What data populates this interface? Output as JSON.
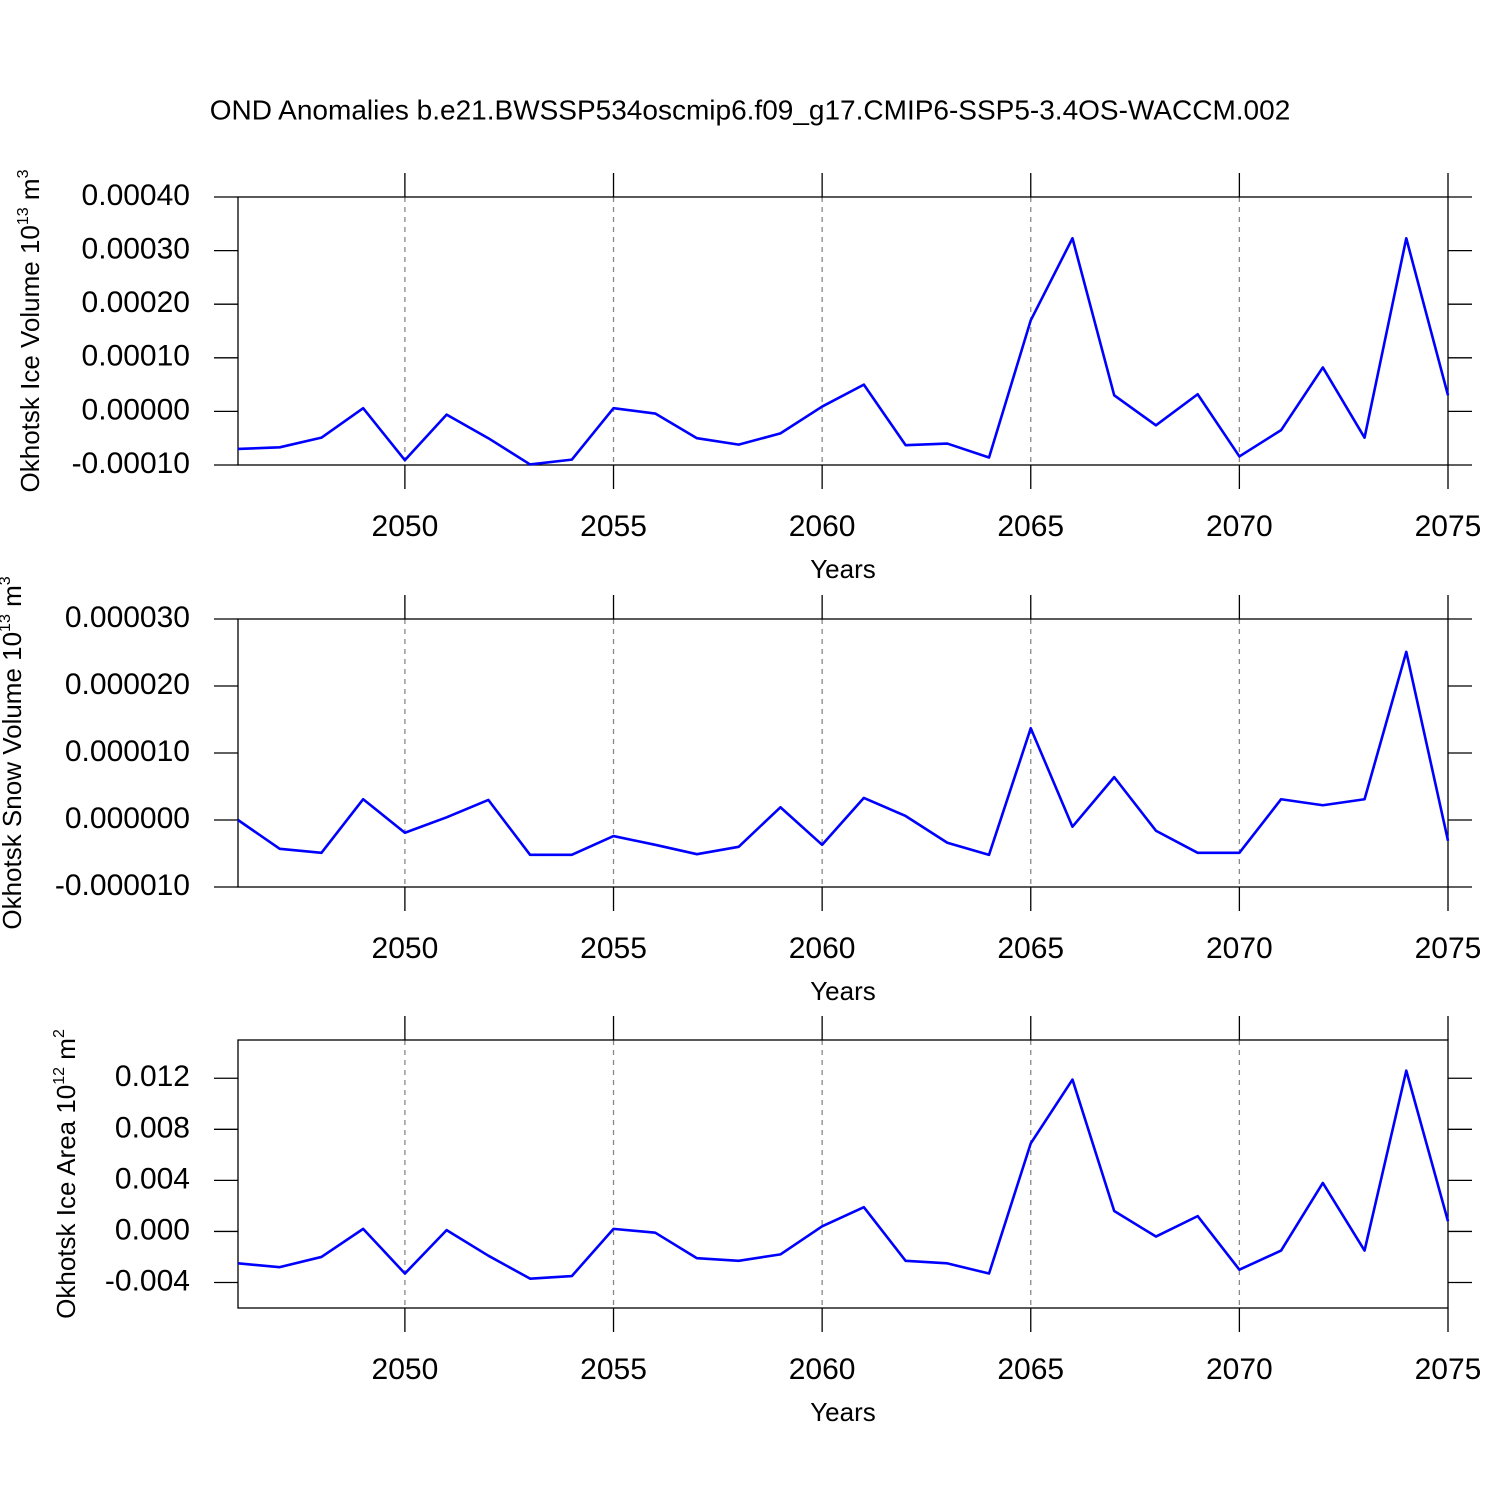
{
  "title": "OND Anomalies b.e21.BWSSP534oscmip6.f09_g17.CMIP6-SSP5-3.4OS-WACCM.002",
  "chart_data": [
    {
      "type": "line",
      "xlabel": "Years",
      "ylabel": [
        "Okhotsk Ice Volume 10",
        "13",
        " m",
        "3"
      ],
      "x": [
        2046,
        2047,
        2048,
        2049,
        2050,
        2051,
        2052,
        2053,
        2054,
        2055,
        2056,
        2057,
        2058,
        2059,
        2060,
        2061,
        2062,
        2063,
        2064,
        2065,
        2066,
        2067,
        2068,
        2069,
        2070,
        2071,
        2072,
        2073,
        2074,
        2075
      ],
      "series": [
        {
          "color": "#0000ff",
          "values": [
            -7e-05,
            -6.7e-05,
            -4.9e-05,
            6e-06,
            -9.1e-05,
            -6e-06,
            -5e-05,
            -9.9e-05,
            -9e-05,
            6e-06,
            -4e-06,
            -5e-05,
            -6.2e-05,
            -4.1e-05,
            9e-06,
            5e-05,
            -6.3e-05,
            -6e-05,
            -8.6e-05,
            0.00017,
            0.000323,
            3e-05,
            -2.6e-05,
            3.2e-05,
            -8.4e-05,
            -3.5e-05,
            8.2e-05,
            -4.9e-05,
            0.000323,
            3e-05
          ]
        }
      ],
      "xlim": [
        2046,
        2075
      ],
      "xticks": [
        2050,
        2055,
        2060,
        2065,
        2070,
        2075
      ],
      "ylim": [
        -0.0001,
        0.0004
      ],
      "yticks": [
        {
          "value": -0.0001,
          "label": "-0.00010"
        },
        {
          "value": 0,
          "label": "0.00000"
        },
        {
          "value": 0.0001,
          "label": "0.00010"
        },
        {
          "value": 0.0002,
          "label": "0.00020"
        },
        {
          "value": 0.0003,
          "label": "0.00030"
        },
        {
          "value": 0.0004,
          "label": "0.00040"
        }
      ],
      "grid": true
    },
    {
      "type": "line",
      "xlabel": "Years",
      "ylabel": [
        "Okhotsk Snow Volume 10",
        "13",
        " m",
        "3"
      ],
      "x": [
        2046,
        2047,
        2048,
        2049,
        2050,
        2051,
        2052,
        2053,
        2054,
        2055,
        2056,
        2057,
        2058,
        2059,
        2060,
        2061,
        2062,
        2063,
        2064,
        2065,
        2066,
        2067,
        2068,
        2069,
        2070,
        2071,
        2072,
        2073,
        2074,
        2075
      ],
      "series": [
        {
          "color": "#0000ff",
          "values": [
            0,
            -4.3e-06,
            -4.9e-06,
            3.1e-06,
            -1.9e-06,
            4e-07,
            3e-06,
            -5.2e-06,
            -5.2e-06,
            -2.4e-06,
            -3.7e-06,
            -5.1e-06,
            -4e-06,
            1.9e-06,
            -3.7e-06,
            3.3e-06,
            6e-07,
            -3.4e-06,
            -5.2e-06,
            1.37e-05,
            -1e-06,
            6.4e-06,
            -1.6e-06,
            -4.9e-06,
            -4.9e-06,
            3.1e-06,
            2.2e-06,
            3.1e-06,
            2.51e-05,
            -3.1e-06
          ]
        }
      ],
      "xlim": [
        2046,
        2075
      ],
      "xticks": [
        2050,
        2055,
        2060,
        2065,
        2070,
        2075
      ],
      "ylim": [
        -1e-05,
        3e-05
      ],
      "yticks": [
        {
          "value": -1e-05,
          "label": "-0.000010"
        },
        {
          "value": 0,
          "label": "0.000000"
        },
        {
          "value": 1e-05,
          "label": "0.000010"
        },
        {
          "value": 2e-05,
          "label": "0.000020"
        },
        {
          "value": 3e-05,
          "label": "0.000030"
        }
      ],
      "grid": true
    },
    {
      "type": "line",
      "xlabel": "Years",
      "ylabel": [
        "Okhotsk Ice Area 10",
        "12",
        " m",
        "2"
      ],
      "x": [
        2046,
        2047,
        2048,
        2049,
        2050,
        2051,
        2052,
        2053,
        2054,
        2055,
        2056,
        2057,
        2058,
        2059,
        2060,
        2061,
        2062,
        2063,
        2064,
        2065,
        2066,
        2067,
        2068,
        2069,
        2070,
        2071,
        2072,
        2073,
        2074,
        2075
      ],
      "series": [
        {
          "color": "#0000ff",
          "values": [
            -0.0025,
            -0.0028,
            -0.002,
            0.0002,
            -0.0033,
            0.0001,
            -0.0019,
            -0.0037,
            -0.0035,
            0.0002,
            -0.0001,
            -0.0021,
            -0.0023,
            -0.0018,
            0.0004,
            0.0019,
            -0.0023,
            -0.0025,
            -0.0033,
            0.0069,
            0.0119,
            0.0016,
            -0.0004,
            0.0012,
            -0.003,
            -0.0015,
            0.0038,
            -0.0015,
            0.0126,
            0.0008
          ]
        }
      ],
      "xlim": [
        2046,
        2075
      ],
      "xticks": [
        2050,
        2055,
        2060,
        2065,
        2070,
        2075
      ],
      "ylim": [
        -0.006,
        0.015
      ],
      "yticks": [
        -0.004,
        {
          "value": 0,
          "label": "0.000"
        },
        0.004,
        0.008,
        0.012
      ],
      "grid": true
    }
  ]
}
